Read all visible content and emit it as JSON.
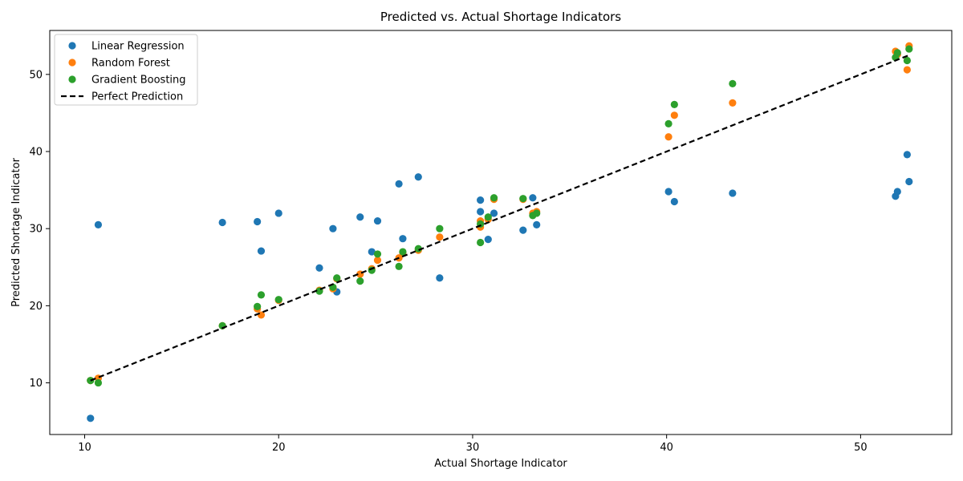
{
  "chart_data": {
    "type": "scatter",
    "title": "Predicted vs. Actual Shortage Indicators",
    "xlabel": "Actual Shortage Indicator",
    "ylabel": "Predicted Shortage Indicator",
    "xlim": [
      8.2,
      54.7
    ],
    "ylim": [
      3.3,
      55.7
    ],
    "xticks": [
      10,
      20,
      30,
      40,
      50
    ],
    "yticks": [
      10,
      20,
      30,
      40,
      50
    ],
    "grid": false,
    "legend_position": "top-left",
    "series": [
      {
        "name": "Linear Regression",
        "color": "#1f77b4",
        "points": [
          [
            10.3,
            5.4
          ],
          [
            10.7,
            30.5
          ],
          [
            17.1,
            30.8
          ],
          [
            18.9,
            30.9
          ],
          [
            19.1,
            27.1
          ],
          [
            20.0,
            32.0
          ],
          [
            22.1,
            24.9
          ],
          [
            22.8,
            30.0
          ],
          [
            23.0,
            21.8
          ],
          [
            24.2,
            31.5
          ],
          [
            24.8,
            27.0
          ],
          [
            25.1,
            31.0
          ],
          [
            26.2,
            35.8
          ],
          [
            26.4,
            28.7
          ],
          [
            27.2,
            36.7
          ],
          [
            28.3,
            23.6
          ],
          [
            30.4,
            32.2
          ],
          [
            30.4,
            33.7
          ],
          [
            30.8,
            28.6
          ],
          [
            31.1,
            32.0
          ],
          [
            32.6,
            29.8
          ],
          [
            33.1,
            34.0
          ],
          [
            33.3,
            30.5
          ],
          [
            40.1,
            34.8
          ],
          [
            40.4,
            33.5
          ],
          [
            43.4,
            34.6
          ],
          [
            51.8,
            34.2
          ],
          [
            51.9,
            34.8
          ],
          [
            52.4,
            39.6
          ],
          [
            52.5,
            36.1
          ]
        ]
      },
      {
        "name": "Random Forest",
        "color": "#ff7f0e",
        "points": [
          [
            10.3,
            10.3
          ],
          [
            10.7,
            10.6
          ],
          [
            17.1,
            17.4
          ],
          [
            18.9,
            19.6
          ],
          [
            19.1,
            18.8
          ],
          [
            20.0,
            20.7
          ],
          [
            22.1,
            22.0
          ],
          [
            22.8,
            22.2
          ],
          [
            23.0,
            23.5
          ],
          [
            24.2,
            24.1
          ],
          [
            24.8,
            24.8
          ],
          [
            25.1,
            25.9
          ],
          [
            26.2,
            26.2
          ],
          [
            26.4,
            26.9
          ],
          [
            27.2,
            27.2
          ],
          [
            28.3,
            28.9
          ],
          [
            30.4,
            30.2
          ],
          [
            30.4,
            31.0
          ],
          [
            30.8,
            31.2
          ],
          [
            31.1,
            33.8
          ],
          [
            32.6,
            33.8
          ],
          [
            33.1,
            32.0
          ],
          [
            33.3,
            32.2
          ],
          [
            40.1,
            41.9
          ],
          [
            40.4,
            44.7
          ],
          [
            43.4,
            46.3
          ],
          [
            51.8,
            53.0
          ],
          [
            51.9,
            52.6
          ],
          [
            52.4,
            50.6
          ],
          [
            52.5,
            53.7
          ]
        ]
      },
      {
        "name": "Gradient Boosting",
        "color": "#2ca02c",
        "points": [
          [
            10.3,
            10.3
          ],
          [
            10.7,
            10.0
          ],
          [
            17.1,
            17.4
          ],
          [
            18.9,
            19.9
          ],
          [
            19.1,
            21.4
          ],
          [
            20.0,
            20.8
          ],
          [
            22.1,
            21.9
          ],
          [
            22.8,
            22.4
          ],
          [
            23.0,
            23.6
          ],
          [
            24.2,
            23.2
          ],
          [
            24.8,
            24.6
          ],
          [
            25.1,
            26.7
          ],
          [
            26.2,
            25.1
          ],
          [
            26.4,
            27.0
          ],
          [
            27.2,
            27.4
          ],
          [
            28.3,
            30.0
          ],
          [
            30.4,
            30.6
          ],
          [
            30.4,
            28.2
          ],
          [
            30.8,
            31.5
          ],
          [
            31.1,
            34.0
          ],
          [
            32.6,
            33.9
          ],
          [
            33.1,
            31.7
          ],
          [
            33.3,
            32.0
          ],
          [
            40.1,
            43.6
          ],
          [
            40.4,
            46.1
          ],
          [
            43.4,
            48.8
          ],
          [
            51.8,
            52.2
          ],
          [
            51.9,
            52.8
          ],
          [
            52.4,
            51.8
          ],
          [
            52.5,
            53.3
          ]
        ]
      },
      {
        "name": "Perfect Prediction",
        "color": "#000000",
        "style": "dashed-line",
        "points": [
          [
            10.3,
            10.3
          ],
          [
            52.5,
            52.5
          ]
        ]
      }
    ]
  }
}
